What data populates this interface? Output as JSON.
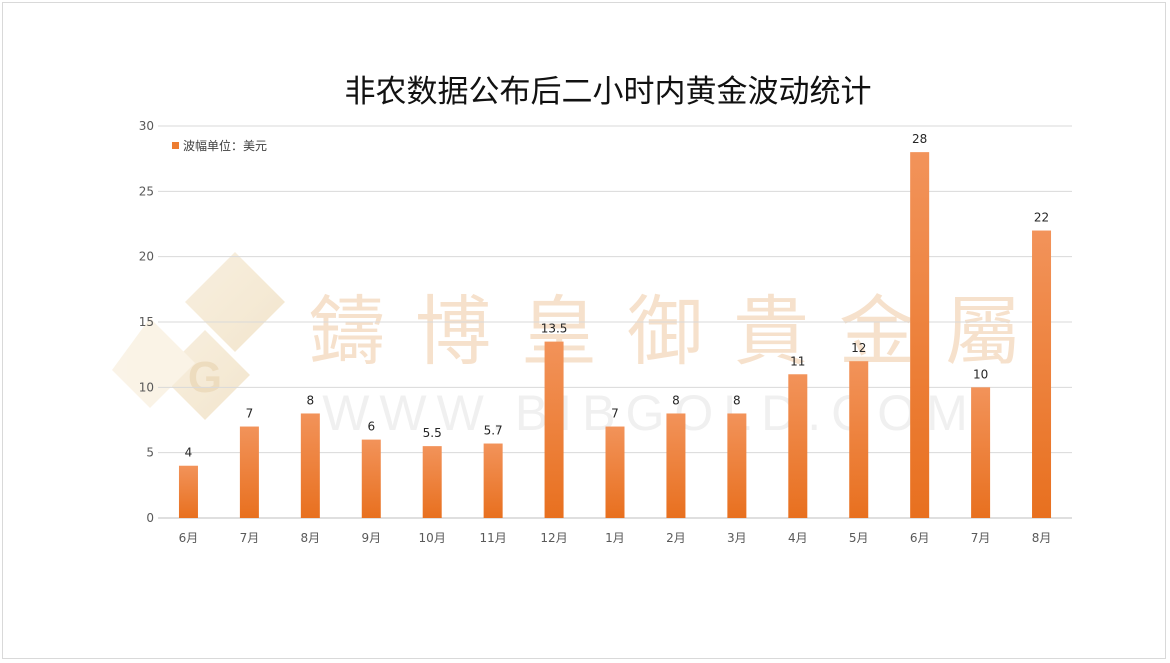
{
  "chart_data": {
    "type": "bar",
    "title": "非农数据公布后二小时内黄金波动统计",
    "xlabel": "",
    "ylabel": "",
    "categories": [
      "6月",
      "7月",
      "8月",
      "9月",
      "10月",
      "11月",
      "12月",
      "1月",
      "2月",
      "3月",
      "4月",
      "5月",
      "6月",
      "7月",
      "8月"
    ],
    "series": [
      {
        "name": "波幅单位：美元",
        "values": [
          4,
          7,
          8,
          6,
          5.5,
          5.7,
          13.5,
          7,
          8,
          8,
          11,
          12,
          28,
          10,
          22
        ],
        "color": "#ed7d31"
      }
    ],
    "ylim": [
      0,
      30
    ],
    "yticks": [
      0,
      5,
      10,
      15,
      20,
      25,
      30
    ],
    "grid": true,
    "legend": "top-left",
    "data_labels": true
  },
  "watermark": {
    "text": "鑄博皇御貴金屬",
    "url_text": "WWW.BIBGOLD.COM",
    "logo_letter": "G"
  }
}
